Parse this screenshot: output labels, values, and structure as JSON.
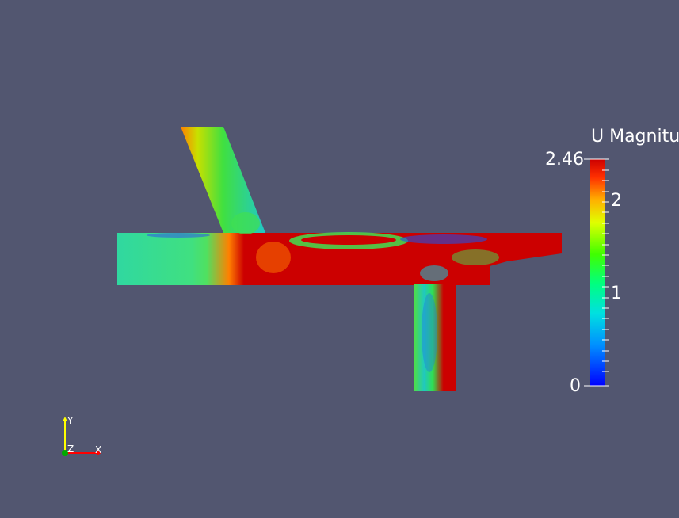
{
  "scalar_bar": {
    "title": "U Magnitude",
    "max_label": "2.46",
    "label_2": "2",
    "label_1": "1",
    "min_label": "0",
    "max_value": 2.46,
    "min_value": 0,
    "colormap": [
      "#0000ff",
      "#00bfff",
      "#00e0c0",
      "#00ff40",
      "#80ff00",
      "#ffff00",
      "#ff8000",
      "#ff2000",
      "#cc0000"
    ]
  },
  "axes": {
    "x_label": "X",
    "y_label": "Y",
    "z_label": "Z",
    "x_color": "#ff0000",
    "y_color": "#ffff00",
    "z_color": "#00aa00"
  },
  "colors": {
    "background": "#525670",
    "high": "#cc0000",
    "mid": "#30e030",
    "low": "#1fc0c0"
  }
}
